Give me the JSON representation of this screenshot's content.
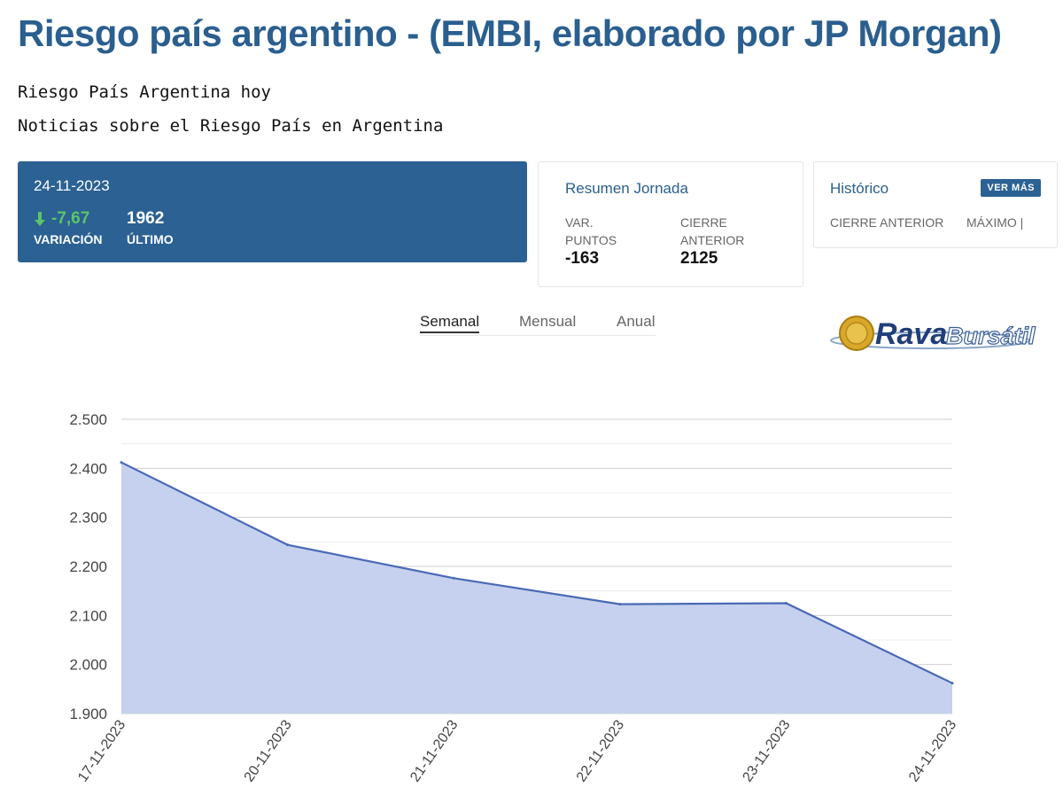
{
  "page": {
    "title": "Riesgo país argentino - (EMBI, elaborado por JP Morgan)",
    "links": [
      "Riesgo País Argentina hoy",
      "Noticias sobre el Riesgo País en Argentina"
    ]
  },
  "main_card": {
    "date": "24-11-2023",
    "variacion_value": "-7,67",
    "variacion_label": "VARIACIÓN",
    "ultimo_value": "1962",
    "ultimo_label": "ÚLTIMO",
    "down_color": "#5cc46a"
  },
  "resumen": {
    "title": "Resumen Jornada",
    "var_label_1": "VAR.",
    "var_label_2": "PUNTOS",
    "var_value": "-163",
    "cierre_label_1": "CIERRE",
    "cierre_label_2": "ANTERIOR",
    "cierre_value": "2125"
  },
  "historico": {
    "title": "Histórico",
    "ver_mas": "VER MÁS",
    "col1": "CIERRE ANTERIOR",
    "col2": "MÁXIMO |"
  },
  "tabs": [
    {
      "label": "Semanal",
      "active": true
    },
    {
      "label": "Mensual",
      "active": false
    },
    {
      "label": "Anual",
      "active": false
    }
  ],
  "logo": {
    "word1": "Rava",
    "word2": "Bursátil"
  },
  "colors": {
    "brand": "#2b6193",
    "title": "#2a5f8f",
    "line": "#4a69b5",
    "area": "#c5d1ee"
  },
  "chart_data": {
    "type": "area",
    "categories": [
      "17-11-2023",
      "20-11-2023",
      "21-11-2023",
      "22-11-2023",
      "23-11-2023",
      "24-11-2023"
    ],
    "values": [
      2412,
      2244,
      2176,
      2123,
      2125,
      1962
    ],
    "ylim": [
      1900,
      2500
    ],
    "yticks": [
      1900,
      2000,
      2100,
      2200,
      2300,
      2400,
      2500
    ],
    "ytick_labels": [
      "1.900",
      "2.000",
      "2.100",
      "2.200",
      "2.300",
      "2.400",
      "2.500"
    ],
    "grid": true,
    "title": "",
    "xlabel": "",
    "ylabel": ""
  }
}
